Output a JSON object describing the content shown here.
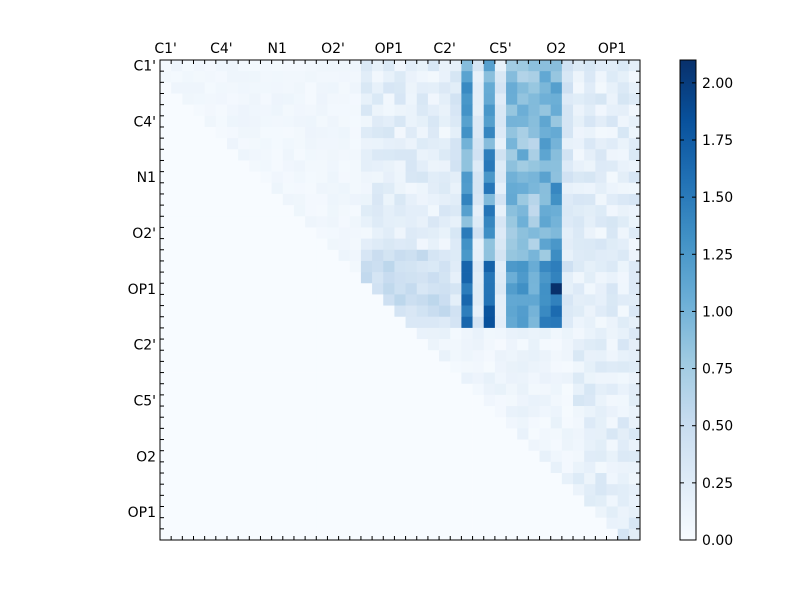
{
  "chart_data": {
    "type": "heatmap",
    "title": "",
    "xlabel": "",
    "ylabel": "",
    "x_tick_labels": [
      "C1'",
      "C4'",
      "N1",
      "O2'",
      "OP1",
      "C2'",
      "C5'",
      "O2",
      "OP1"
    ],
    "y_tick_labels": [
      "C1'",
      "C4'",
      "N1",
      "O2'",
      "OP1",
      "C2'",
      "C5'",
      "O2",
      "OP1"
    ],
    "grid_size": 43,
    "tick_stride": 5,
    "colorbar": {
      "min": 0.0,
      "max": 2.1,
      "ticks": [
        "0.00",
        "0.25",
        "0.50",
        "0.75",
        "1.00",
        "1.25",
        "1.50",
        "1.75",
        "2.00"
      ],
      "tick_values": [
        0.0,
        0.25,
        0.5,
        0.75,
        1.0,
        1.25,
        1.5,
        1.75,
        2.0
      ],
      "colormap": "Blues",
      "color_low": "#f7fbff",
      "color_high": "#08306b"
    },
    "hot_columns": [
      {
        "col": 27,
        "peak": 1.5
      },
      {
        "col": 29,
        "peak": 1.55
      },
      {
        "col": 31,
        "peak": 1.1
      },
      {
        "col": 32,
        "peak": 1.15
      },
      {
        "col": 33,
        "peak": 1.0
      },
      {
        "col": 34,
        "peak": 1.25
      },
      {
        "col": 35,
        "peak": 1.45
      }
    ],
    "hot_row_band": [
      18,
      23
    ],
    "peak_cell": {
      "row": 20,
      "col": 35,
      "value": 2.1
    }
  }
}
